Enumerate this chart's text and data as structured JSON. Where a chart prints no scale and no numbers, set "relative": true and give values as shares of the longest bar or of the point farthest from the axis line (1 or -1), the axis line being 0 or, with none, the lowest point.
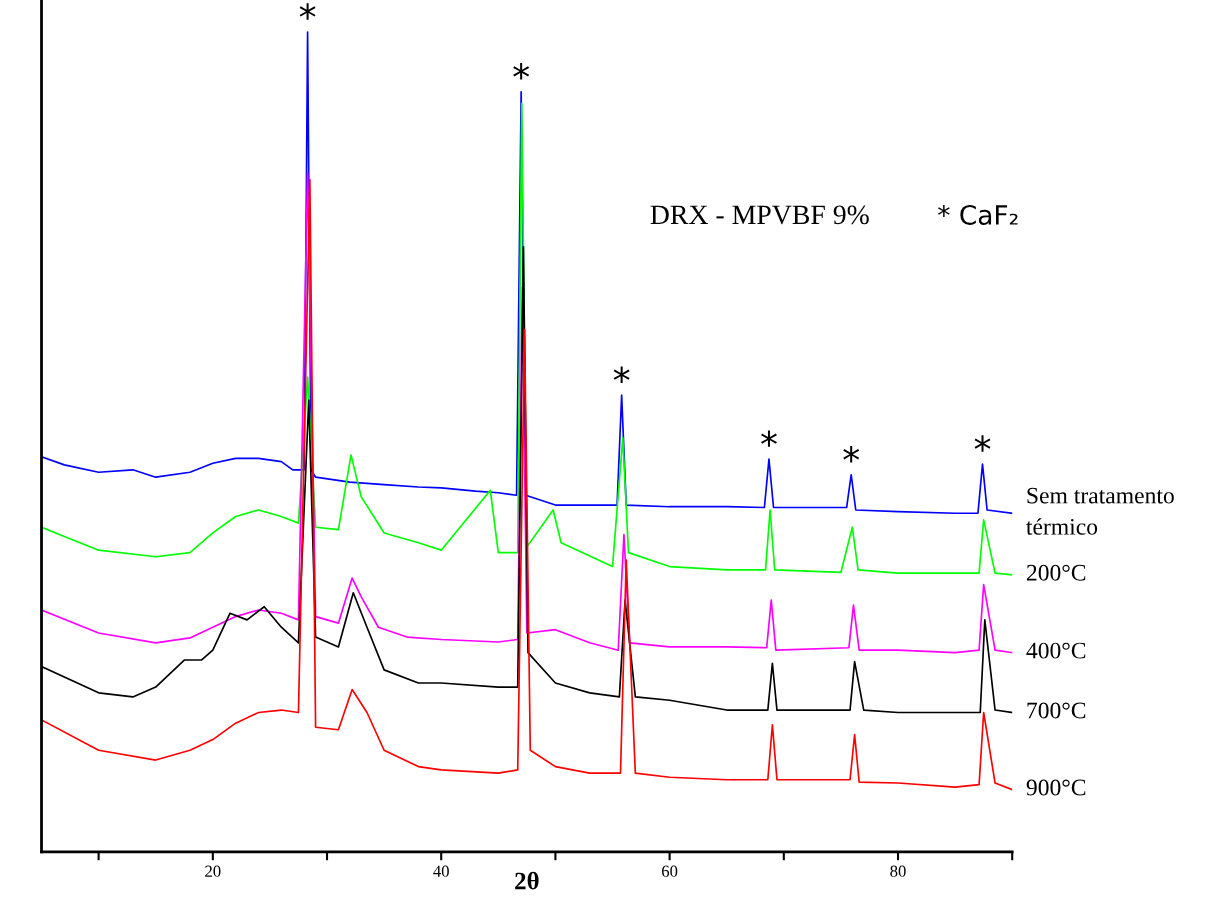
{
  "chart_data": {
    "type": "line",
    "relative": true,
    "title": "DRX - MPVBF 9%",
    "xlabel": "2θ",
    "xlim": [
      5,
      90
    ],
    "xticks": [
      {
        "value": 10,
        "label": null
      },
      20,
      {
        "value": 30,
        "label": null
      },
      40,
      {
        "value": 50,
        "label": null
      },
      60,
      {
        "value": 70,
        "label": null
      },
      80,
      {
        "value": 90,
        "label": null
      }
    ],
    "grid": false,
    "legend": false,
    "marker": "none",
    "line_style": "solid",
    "annotations": [
      "* CaF₂",
      {
        "text": "*",
        "x": 28.3,
        "y": 1.0
      },
      {
        "text": "*",
        "x": 47.0,
        "y": 0.927
      },
      {
        "text": "*",
        "x": 55.8,
        "y": 0.557
      },
      {
        "text": "*",
        "x": 68.7,
        "y": 0.479
      },
      {
        "text": "*",
        "x": 75.9,
        "y": 0.46
      },
      {
        "text": "*",
        "x": 87.4,
        "y": 0.473
      }
    ],
    "series": [
      {
        "name": "Sem tratamento\ntérmico",
        "color": "#0000ff",
        "x": [
          5,
          7,
          10,
          13,
          15,
          18,
          20,
          22,
          24,
          26,
          27,
          28.0,
          28.3,
          28.6,
          29,
          32,
          35,
          38,
          40,
          43,
          45,
          46.6,
          47.0,
          47.4,
          50,
          53,
          55.4,
          55.8,
          56.2,
          60,
          65,
          68.3,
          68.7,
          69.1,
          72,
          75.5,
          75.9,
          76.3,
          80,
          85,
          87.0,
          87.4,
          87.8,
          90
        ],
        "values": [
          0.482,
          0.472,
          0.463,
          0.466,
          0.457,
          0.463,
          0.474,
          0.48,
          0.48,
          0.476,
          0.466,
          0.466,
          1.0,
          0.466,
          0.457,
          0.451,
          0.448,
          0.445,
          0.444,
          0.44,
          0.438,
          0.435,
          0.927,
          0.435,
          0.423,
          0.423,
          0.423,
          0.557,
          0.423,
          0.421,
          0.421,
          0.42,
          0.479,
          0.42,
          0.42,
          0.42,
          0.46,
          0.417,
          0.415,
          0.413,
          0.413,
          0.473,
          0.417,
          0.413
        ]
      },
      {
        "name": "200°C",
        "color": "#00ff00",
        "x": [
          5,
          10,
          15,
          18,
          20,
          22,
          24,
          26,
          27.5,
          28.3,
          29,
          31,
          32.1,
          33,
          35,
          38,
          40,
          44.3,
          45,
          46.7,
          47.05,
          47.5,
          49.8,
          50.5,
          55,
          55.9,
          56.4,
          60,
          65,
          68.4,
          68.8,
          69.2,
          75,
          76.0,
          76.5,
          80,
          85,
          87.1,
          87.5,
          88.5,
          90
        ],
        "values": [
          0.396,
          0.368,
          0.36,
          0.365,
          0.389,
          0.409,
          0.417,
          0.409,
          0.401,
          0.579,
          0.396,
          0.393,
          0.484,
          0.433,
          0.389,
          0.377,
          0.368,
          0.441,
          0.365,
          0.365,
          0.913,
          0.372,
          0.417,
          0.377,
          0.348,
          0.505,
          0.365,
          0.348,
          0.344,
          0.344,
          0.417,
          0.344,
          0.341,
          0.396,
          0.344,
          0.34,
          0.34,
          0.34,
          0.405,
          0.34,
          0.338
        ]
      },
      {
        "name": "400°C",
        "color": "#ff00ff",
        "x": [
          5,
          10,
          15,
          18,
          20,
          22,
          24,
          26,
          27.5,
          28.3,
          29,
          31,
          32.2,
          33,
          34.5,
          37,
          40,
          45,
          46.7,
          47.1,
          47.5,
          50,
          53,
          55.5,
          56.0,
          56.5,
          60,
          65,
          68.5,
          68.9,
          69.3,
          75.7,
          76.1,
          76.6,
          80,
          85,
          87.1,
          87.5,
          88.5,
          90
        ],
        "values": [
          0.295,
          0.267,
          0.255,
          0.261,
          0.274,
          0.287,
          0.295,
          0.291,
          0.283,
          0.828,
          0.287,
          0.279,
          0.334,
          0.311,
          0.274,
          0.262,
          0.259,
          0.256,
          0.259,
          0.689,
          0.267,
          0.271,
          0.255,
          0.246,
          0.387,
          0.255,
          0.25,
          0.25,
          0.249,
          0.307,
          0.246,
          0.249,
          0.301,
          0.246,
          0.246,
          0.243,
          0.246,
          0.326,
          0.246,
          0.243
        ]
      },
      {
        "name": "700°C",
        "color": "#000000",
        "x": [
          5,
          10,
          13,
          15,
          17.5,
          19,
          20,
          21.5,
          23,
          24.5,
          26,
          27.5,
          28.4,
          29,
          31,
          32.3,
          33.5,
          35,
          38,
          40,
          45,
          46.7,
          47.2,
          47.6,
          50,
          53,
          55.6,
          56.1,
          57,
          60,
          65,
          68.6,
          69.0,
          69.4,
          75.8,
          76.2,
          77,
          80,
          85,
          87.2,
          87.6,
          88.5,
          90
        ],
        "values": [
          0.226,
          0.194,
          0.189,
          0.201,
          0.234,
          0.234,
          0.246,
          0.291,
          0.283,
          0.299,
          0.274,
          0.255,
          0.551,
          0.262,
          0.25,
          0.316,
          0.274,
          0.222,
          0.206,
          0.206,
          0.201,
          0.201,
          0.738,
          0.243,
          0.206,
          0.194,
          0.189,
          0.307,
          0.189,
          0.185,
          0.173,
          0.173,
          0.23,
          0.173,
          0.173,
          0.232,
          0.173,
          0.17,
          0.17,
          0.17,
          0.283,
          0.173,
          0.17
        ]
      },
      {
        "name": "900°C",
        "color": "#ff0000",
        "x": [
          5,
          10,
          15,
          18,
          20,
          22,
          24,
          26,
          27.5,
          28.5,
          29,
          31,
          32.2,
          33.5,
          35,
          38,
          40,
          45,
          46.7,
          47.3,
          47.8,
          50,
          53,
          55.7,
          56.2,
          57,
          60,
          65,
          68.6,
          69.0,
          69.4,
          75.8,
          76.2,
          76.6,
          80,
          85,
          87.1,
          87.5,
          88.5,
          90
        ],
        "values": [
          0.161,
          0.124,
          0.112,
          0.124,
          0.137,
          0.157,
          0.17,
          0.173,
          0.17,
          0.82,
          0.152,
          0.149,
          0.198,
          0.17,
          0.124,
          0.104,
          0.1,
          0.096,
          0.1,
          0.637,
          0.124,
          0.104,
          0.096,
          0.096,
          0.356,
          0.096,
          0.091,
          0.088,
          0.088,
          0.155,
          0.088,
          0.088,
          0.143,
          0.085,
          0.084,
          0.079,
          0.082,
          0.17,
          0.084,
          0.076
        ]
      }
    ]
  }
}
